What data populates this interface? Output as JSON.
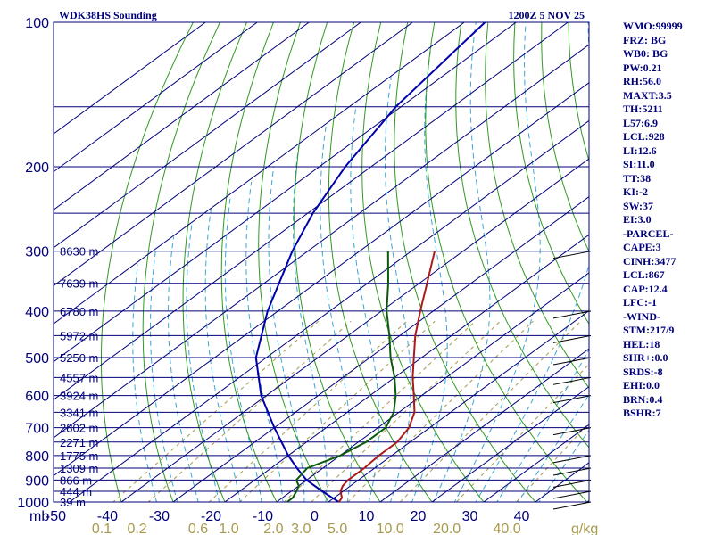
{
  "chart_data": {
    "type": "skew-t",
    "title": "WDK38HS Sounding",
    "valid_time": "1200Z  5 NOV 25",
    "pressure_unit_label": "mb",
    "mixing_ratio_unit_label": "g/kg",
    "pressure_ticks": [
      "100",
      "200",
      "300",
      "400",
      "500",
      "600",
      "700",
      "800",
      "900",
      "1000"
    ],
    "temp_ticks": [
      "-50",
      "-40",
      "-30",
      "-20",
      "-10",
      "0",
      "10",
      "20",
      "30",
      "40"
    ],
    "mixing_ratio_ticks": [
      "0.1",
      "0.2",
      "0.6",
      "1.0",
      "2.0",
      "3.0",
      "5.0",
      "10.0",
      "20.0",
      "40.0"
    ],
    "height_labels": [
      {
        "p": 300,
        "text": "8630 m"
      },
      {
        "p": 350,
        "text": "7639 m"
      },
      {
        "p": 400,
        "text": "6780 m"
      },
      {
        "p": 450,
        "text": "5972 m"
      },
      {
        "p": 500,
        "text": "5250 m"
      },
      {
        "p": 550,
        "text": "4557 m"
      },
      {
        "p": 600,
        "text": "3924 m"
      },
      {
        "p": 650,
        "text": "3341 m"
      },
      {
        "p": 700,
        "text": "2802 m"
      },
      {
        "p": 750,
        "text": "2271 m"
      },
      {
        "p": 800,
        "text": "1775 m"
      },
      {
        "p": 850,
        "text": "1309 m"
      },
      {
        "p": 900,
        "text": "866 m"
      },
      {
        "p": 950,
        "text": "444 m"
      },
      {
        "p": 1000,
        "text": "39 m"
      }
    ],
    "temperature": {
      "p": [
        1000,
        980,
        950,
        925,
        900,
        850,
        800,
        750,
        700,
        650,
        600,
        550,
        500,
        450,
        400,
        350,
        300
      ],
      "t": [
        2.0,
        1.5,
        -0.5,
        -1.5,
        -2.0,
        -2.0,
        -2.5,
        -2.5,
        -4.0,
        -7.0,
        -11.5,
        -16.5,
        -21.5,
        -27.0,
        -32.5,
        -38.5,
        -45.5
      ]
    },
    "dewpoint": {
      "p": [
        1000,
        980,
        950,
        925,
        900,
        850,
        800,
        750,
        700,
        650,
        600,
        550,
        500,
        450,
        400,
        350,
        300
      ],
      "td": [
        -8.0,
        -8.0,
        -9.0,
        -10.0,
        -12.0,
        -13.0,
        -10.0,
        -8.5,
        -8.5,
        -11.0,
        -15.0,
        -20.0,
        -26.0,
        -32.0,
        -39.0,
        -46.0,
        -54.5
      ]
    },
    "parcel_path": {
      "p": [
        1000,
        950,
        900,
        850,
        800,
        700,
        600,
        500,
        400,
        300,
        250,
        200,
        150,
        100
      ],
      "t": [
        2.0,
        -4.0,
        -10.0,
        -15.0,
        -20.0,
        -30.0,
        -41.0,
        -52.0,
        -62.0,
        -73.0,
        -79.0,
        -85.0,
        -91.0,
        -96.0
      ]
    },
    "indices": [
      "WMO:99999",
      "FRZ: BG",
      "WB0: BG",
      "PW:0.21",
      "RH:56.0",
      "MAXT:3.5",
      "TH:5211",
      "L57:6.9",
      "LCL:928",
      "LI:12.6",
      "SI:11.0",
      "TT:38",
      "KI:-2",
      "SW:37",
      "EI:3.0",
      "-PARCEL-",
      "CAPE:3",
      "CINH:3477",
      "LCL:867",
      "CAP:12.4",
      "LFC:-1",
      "-WIND-",
      "STM:217/9",
      "HEL:18",
      "SHR+:0.0",
      "SRDS:-8",
      "EHI:0.0",
      "BRN:0.4",
      "BSHR:7"
    ],
    "colors": {
      "isobar": "#00007a",
      "isotherm": "#00007a",
      "dry_adiabat": "#2f9a1f",
      "moist_adiabat": "#3aa6d6",
      "mixing_ratio": "#a89a4a",
      "temperature": "#aa1a1a",
      "dewpoint": "#0c5a0c",
      "parcel": "#0000aa",
      "axis_text": "#00007a",
      "mixing_text": "#a89a4a"
    }
  }
}
